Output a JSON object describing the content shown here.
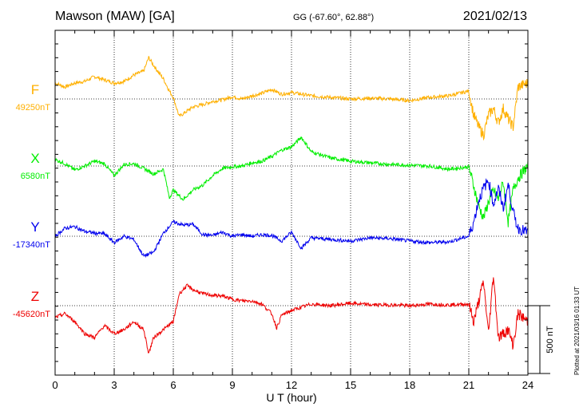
{
  "header": {
    "station": "Mawson (MAW)  [GA]",
    "coordinates": "GG (-67.60°,  62.88°)",
    "date": "2021/02/13"
  },
  "plotted_note": "Plotted at 2021/03/16 01:33 UT",
  "chart_data": {
    "type": "line",
    "xlabel": "U T (hour)",
    "x_ticks": [
      "0",
      "3",
      "6",
      "9",
      "12",
      "15",
      "18",
      "21",
      "24"
    ],
    "xlim": [
      0,
      24
    ],
    "grid": true,
    "scale_bar": {
      "label": "500 nT",
      "value_nT": 500
    },
    "series": [
      {
        "name": "F",
        "baseline": "49250nT",
        "baseline_nT": 49250,
        "color": "#ffb000",
        "x": [
          0,
          0.5,
          1,
          1.5,
          2,
          2.5,
          3,
          3.5,
          4,
          4.5,
          4.75,
          5,
          5.5,
          5.8,
          6,
          6.3,
          6.7,
          7,
          7.5,
          8,
          8.5,
          9,
          9.5,
          10,
          10.5,
          11,
          11.5,
          12,
          12.5,
          13,
          14,
          15,
          16,
          17,
          18,
          19,
          20,
          21,
          21.25,
          21.5,
          21.75,
          22,
          22.25,
          22.5,
          22.75,
          23,
          23.25,
          23.5,
          24
        ],
        "y": [
          200,
          150,
          200,
          220,
          280,
          240,
          200,
          220,
          300,
          350,
          520,
          420,
          250,
          100,
          20,
          -220,
          -150,
          -100,
          -70,
          -30,
          -10,
          30,
          0,
          40,
          70,
          120,
          60,
          80,
          60,
          40,
          20,
          0,
          10,
          0,
          -20,
          20,
          40,
          100,
          -200,
          -350,
          -450,
          -200,
          -120,
          -300,
          -120,
          -250,
          -350,
          150,
          200
        ]
      },
      {
        "name": "X",
        "baseline": "6580nT",
        "baseline_nT": 6580,
        "color": "#00ee00",
        "x": [
          0,
          0.5,
          1,
          1.5,
          2,
          2.5,
          3,
          3.5,
          4,
          4.5,
          5,
          5.5,
          5.8,
          6,
          6.5,
          7,
          7.5,
          8,
          8.5,
          9,
          9.5,
          10,
          10.5,
          11,
          11.5,
          12,
          12.5,
          13,
          14,
          15,
          16,
          17,
          18,
          19,
          20,
          21,
          21.25,
          21.5,
          21.75,
          22,
          22.25,
          22.5,
          22.75,
          23,
          23.25,
          23.5,
          24
        ],
        "y": [
          80,
          30,
          -50,
          0,
          60,
          30,
          -120,
          20,
          30,
          -30,
          -100,
          -40,
          -400,
          -300,
          -420,
          -300,
          -240,
          -120,
          -30,
          -10,
          0,
          40,
          60,
          120,
          200,
          240,
          360,
          180,
          100,
          60,
          40,
          20,
          10,
          0,
          -40,
          -10,
          -250,
          -500,
          -650,
          -450,
          -300,
          -420,
          -200,
          -700,
          -300,
          -150,
          0
        ]
      },
      {
        "name": "Y",
        "baseline": "-17340nT",
        "baseline_nT": -17340,
        "color": "#0000ee",
        "x": [
          0,
          0.5,
          1,
          1.5,
          2,
          2.5,
          3,
          3.5,
          4,
          4.5,
          5,
          5.5,
          6,
          6.5,
          7,
          7.5,
          8,
          8.5,
          9,
          9.5,
          10,
          10.5,
          11,
          11.5,
          12,
          12.5,
          13,
          14,
          15,
          16,
          17,
          18,
          19,
          20,
          21,
          21.25,
          21.5,
          21.75,
          22,
          22.25,
          22.5,
          22.75,
          23,
          23.25,
          23.5,
          24
        ],
        "y": [
          0,
          100,
          120,
          60,
          40,
          30,
          -80,
          0,
          -40,
          -250,
          -200,
          40,
          180,
          140,
          150,
          20,
          10,
          50,
          0,
          20,
          0,
          20,
          10,
          -60,
          50,
          -150,
          -20,
          -40,
          -60,
          -20,
          -30,
          -60,
          -80,
          -70,
          0,
          180,
          450,
          600,
          700,
          400,
          600,
          350,
          650,
          300,
          100,
          50
        ]
      },
      {
        "name": "Z",
        "baseline": "-45620nT",
        "baseline_nT": -45620,
        "color": "#ee0000",
        "x": [
          0,
          0.5,
          1,
          1.5,
          2,
          2.5,
          3,
          3.5,
          4,
          4.5,
          4.75,
          5,
          5.5,
          6,
          6.3,
          6.7,
          7,
          7.5,
          8,
          8.5,
          9,
          9.5,
          10,
          10.5,
          11,
          11.25,
          11.5,
          12,
          12.5,
          13,
          14,
          15,
          16,
          17,
          18,
          19,
          20,
          21,
          21.25,
          21.5,
          21.75,
          22,
          22.25,
          22.5,
          22.75,
          23,
          23.25,
          23.5,
          24
        ],
        "y": [
          -150,
          -100,
          -200,
          -350,
          -400,
          -250,
          -350,
          -300,
          -200,
          -300,
          -600,
          -400,
          -300,
          -200,
          150,
          250,
          200,
          150,
          130,
          120,
          80,
          60,
          60,
          20,
          -100,
          -280,
          -120,
          -60,
          -20,
          20,
          0,
          30,
          10,
          10,
          0,
          20,
          10,
          20,
          -200,
          50,
          300,
          -350,
          400,
          -400,
          -350,
          -300,
          -500,
          -100,
          -200
        ]
      }
    ]
  }
}
